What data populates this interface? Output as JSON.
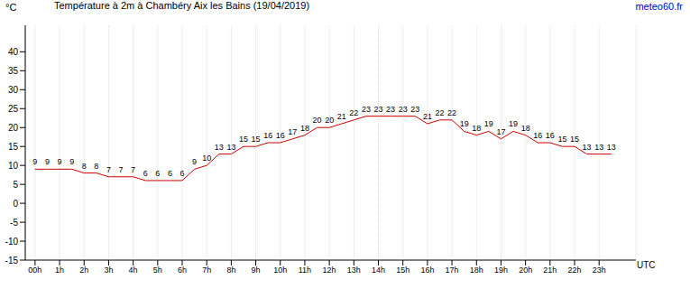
{
  "chart_data": {
    "type": "line",
    "title": "Température à 2m à Chambéry Aix les Bains (19/04/2019)",
    "subtitle": "meteo60.fr",
    "y_label": "°C",
    "x_label": "UTC",
    "x": [
      0,
      0.5,
      1,
      1.5,
      2,
      2.5,
      3,
      3.5,
      4,
      4.5,
      5,
      5.5,
      6,
      6.5,
      7,
      7.5,
      8,
      8.5,
      9,
      9.5,
      10,
      10.5,
      11,
      11.5,
      12,
      12.5,
      13,
      13.5,
      14,
      14.5,
      15,
      15.5,
      16,
      16.5,
      17,
      17.5,
      18,
      18.5,
      19,
      19.5,
      20,
      20.5,
      21,
      21.5,
      22,
      22.5,
      23,
      23.5
    ],
    "series": [
      {
        "name": "Température",
        "color": "#cc0000",
        "values": [
          9,
          9,
          9,
          9,
          8,
          8,
          7,
          7,
          7,
          6,
          6,
          6,
          6,
          9,
          10,
          13,
          13,
          15,
          15,
          16,
          16,
          17,
          18,
          20,
          20,
          21,
          22,
          23,
          23,
          23,
          23,
          23,
          21,
          22,
          22,
          19,
          18,
          19,
          17,
          19,
          18,
          16,
          16,
          15,
          15,
          13,
          13,
          13
        ]
      }
    ],
    "xlim": [
      -0.4,
      24.5
    ],
    "xticks": [
      {
        "value": 0,
        "label": "00h"
      },
      {
        "value": 1,
        "label": "1h"
      },
      {
        "value": 2,
        "label": "2h"
      },
      {
        "value": 3,
        "label": "3h"
      },
      {
        "value": 4,
        "label": "4h"
      },
      {
        "value": 5,
        "label": "5h"
      },
      {
        "value": 6,
        "label": "6h"
      },
      {
        "value": 7,
        "label": "7h"
      },
      {
        "value": 8,
        "label": "8h"
      },
      {
        "value": 9,
        "label": "9h"
      },
      {
        "value": 10,
        "label": "10h"
      },
      {
        "value": 11,
        "label": "11h"
      },
      {
        "value": 12,
        "label": "12h"
      },
      {
        "value": 13,
        "label": "13h"
      },
      {
        "value": 14,
        "label": "14h"
      },
      {
        "value": 15,
        "label": "15h"
      },
      {
        "value": 16,
        "label": "16h"
      },
      {
        "value": 17,
        "label": "17h"
      },
      {
        "value": 18,
        "label": "18h"
      },
      {
        "value": 19,
        "label": "19h"
      },
      {
        "value": 20,
        "label": "20h"
      },
      {
        "value": 21,
        "label": "21h"
      },
      {
        "value": 22,
        "label": "22h"
      },
      {
        "value": 23,
        "label": "23h"
      }
    ],
    "ylim": [
      -15,
      47
    ],
    "yticks": [
      -15,
      -10,
      -5,
      0,
      5,
      10,
      15,
      20,
      25,
      30,
      35,
      40
    ],
    "grid": true,
    "data_labels": true,
    "marker": "none"
  }
}
